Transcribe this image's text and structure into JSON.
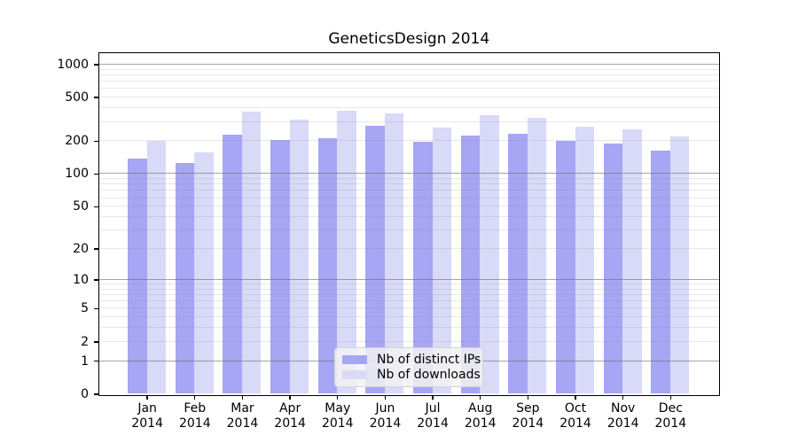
{
  "chart_data": {
    "type": "bar",
    "title": "GeneticsDesign 2014",
    "y_scale": "log1p",
    "categories": [
      "Jan 2014",
      "Feb 2014",
      "Mar 2014",
      "Apr 2014",
      "May 2014",
      "Jun 2014",
      "Jul 2014",
      "Aug 2014",
      "Sep 2014",
      "Oct 2014",
      "Nov 2014",
      "Dec 2014"
    ],
    "series": [
      {
        "name": "Nb of distinct IPs",
        "color": "#a6a6f4",
        "values": [
          138,
          126,
          227,
          204,
          210,
          275,
          197,
          221,
          232,
          199,
          190,
          163
        ]
      },
      {
        "name": "Nb of downloads",
        "color": "#d9d9f8",
        "values": [
          198,
          155,
          369,
          312,
          378,
          356,
          262,
          345,
          322,
          267,
          256,
          217
        ]
      }
    ],
    "yticks": [
      0,
      1,
      2,
      5,
      10,
      20,
      50,
      100,
      200,
      500,
      1000
    ],
    "ylim": [
      0,
      1270
    ],
    "grid": "on",
    "gridline_major_color": "#b0b0b0",
    "gridline_minor_color": "#e8e8e8",
    "legend_position": "lower center"
  }
}
